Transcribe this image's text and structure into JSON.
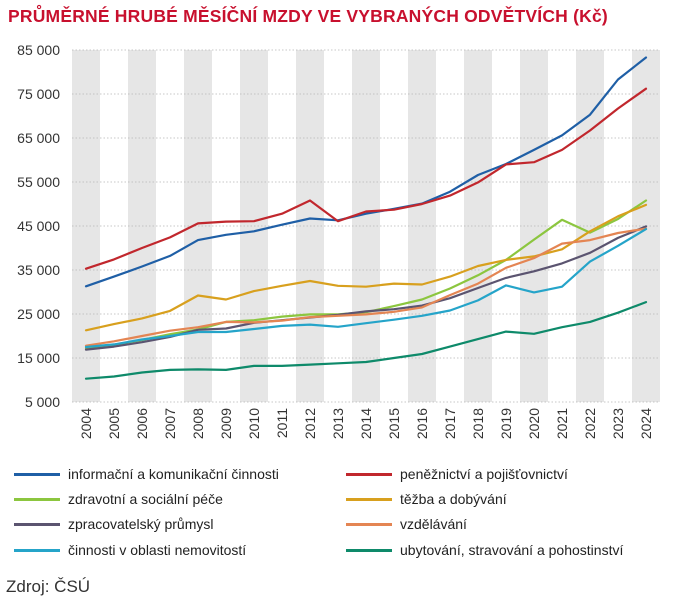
{
  "title": "PRŮMĚRNÉ HRUBÉ MĚSÍČNÍ MZDY VE VYBRANÝCH ODVĚTVÍCH (Kč)",
  "source": "Zdroj: ČSÚ",
  "chart_data": {
    "type": "line",
    "x": [
      "2004",
      "2005",
      "2006",
      "2007",
      "2008",
      "2009",
      "2010",
      "2011",
      "2012",
      "2013",
      "2014",
      "2015",
      "2016",
      "2017",
      "2018",
      "2019",
      "2020",
      "2021",
      "2022",
      "2023",
      "2024"
    ],
    "ylim": [
      5000,
      85000
    ],
    "yticks": [
      5000,
      15000,
      25000,
      35000,
      45000,
      55000,
      65000,
      75000,
      85000
    ],
    "ytick_labels": [
      "5 000",
      "15 000",
      "25 000",
      "35 000",
      "45 000",
      "55 000",
      "65 000",
      "75 000",
      "85 000"
    ],
    "grid": "horizontal dotted lines, alternating shaded year columns",
    "legend_position": "bottom",
    "series": [
      {
        "name": "informační a komunikační činnosti",
        "color": "#1f5fa6",
        "values": [
          31300,
          33500,
          35800,
          38200,
          41800,
          43000,
          43800,
          45300,
          46700,
          46300,
          47800,
          48900,
          50100,
          52800,
          56600,
          59100,
          62300,
          65600,
          70300,
          78300,
          83300
        ]
      },
      {
        "name": "peněžnictví a pojišťovnictví",
        "color": "#c1272d",
        "values": [
          35300,
          37400,
          40000,
          42400,
          45600,
          46000,
          46100,
          47800,
          50800,
          46100,
          48300,
          48700,
          50000,
          51900,
          54900,
          59000,
          59500,
          62300,
          66700,
          71700,
          76200
        ]
      },
      {
        "name": "zdravotní a sociální péče",
        "color": "#8cc63f",
        "values": [
          17200,
          18000,
          19100,
          20400,
          21500,
          23200,
          23600,
          24400,
          24900,
          24900,
          25400,
          26800,
          28300,
          30800,
          33800,
          37300,
          41900,
          46400,
          43500,
          46600,
          50800
        ]
      },
      {
        "name": "těžba a dobývání",
        "color": "#d8a01e",
        "values": [
          21300,
          22700,
          24000,
          25700,
          29200,
          28300,
          30200,
          31400,
          32500,
          31400,
          31200,
          31900,
          31700,
          33500,
          35900,
          37300,
          38100,
          39700,
          43800,
          47200,
          49800
        ]
      },
      {
        "name": "zpracovatelský průmysl",
        "color": "#5b5470",
        "values": [
          16900,
          17600,
          18600,
          19800,
          21400,
          21700,
          23000,
          23600,
          24200,
          24800,
          25600,
          26100,
          26900,
          28600,
          30900,
          33200,
          34700,
          36500,
          38900,
          42300,
          44900
        ]
      },
      {
        "name": "vzdělávání",
        "color": "#e48553",
        "values": [
          17800,
          18800,
          20000,
          21200,
          22000,
          23200,
          23100,
          23500,
          24300,
          24600,
          24900,
          25500,
          26500,
          29300,
          31900,
          35500,
          37700,
          41000,
          41800,
          43400,
          44400
        ]
      },
      {
        "name": "činnosti v oblasti nemovitostí",
        "color": "#25a4c9",
        "values": [
          17500,
          18100,
          19200,
          20000,
          20900,
          20900,
          21600,
          22300,
          22600,
          22100,
          22900,
          23700,
          24600,
          25800,
          28100,
          31500,
          29900,
          31200,
          36900,
          40500,
          44300
        ]
      },
      {
        "name": "ubytování, stravování a pohostinství",
        "color": "#0e8a6a",
        "values": [
          10300,
          10800,
          11700,
          12300,
          12400,
          12300,
          13200,
          13200,
          13500,
          13800,
          14100,
          15000,
          15900,
          17600,
          19300,
          21000,
          20500,
          22000,
          23200,
          25300,
          27700
        ]
      }
    ]
  }
}
